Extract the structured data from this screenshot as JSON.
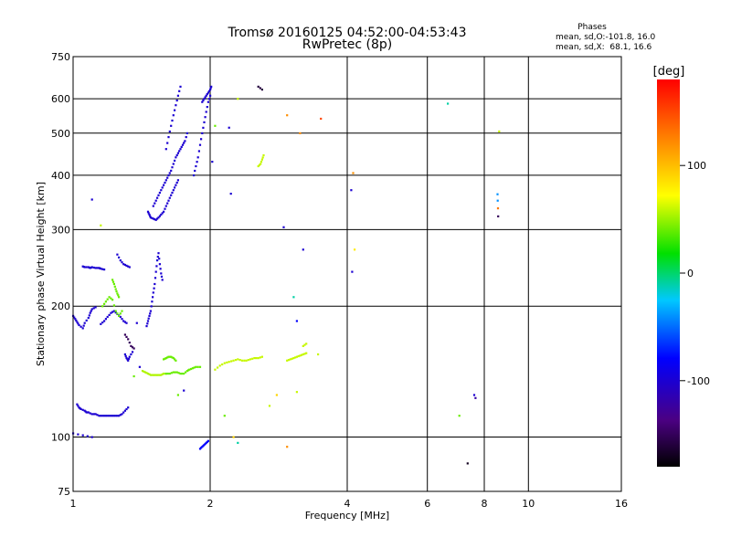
{
  "chart_data": {
    "type": "scatter",
    "title": "Tromsø 20160125 04:52:00-04:53:43",
    "subtitle": "RwPretec (8p)",
    "xlabel": "Frequency [MHz]",
    "ylabel": "Stationary phase Virtual Height [km]",
    "x_scale": "log",
    "y_scale": "log",
    "xlim": [
      1,
      16
    ],
    "ylim": [
      75,
      750
    ],
    "x_ticks": [
      1,
      2,
      4,
      6,
      8,
      10,
      16
    ],
    "y_ticks": [
      75,
      100,
      200,
      300,
      400,
      500,
      600,
      750
    ],
    "grid": true,
    "phases_box": {
      "heading": "Phases",
      "line1": "mean, sd,O:-101.8, 16.0",
      "line2": "mean, sd,X:  68.1, 16.6"
    },
    "colorbar": {
      "label": "[deg]",
      "min": -180,
      "max": 180,
      "ticks": [
        100,
        0,
        -100
      ]
    },
    "traces": [
      {
        "x": [
          1.0,
          1.01,
          1.02,
          1.03,
          1.05,
          1.06,
          1.08,
          1.09,
          1.1,
          1.12
        ],
        "y": [
          190,
          187,
          184,
          181,
          178,
          183,
          188,
          193,
          197,
          199
        ],
        "phase": -100
      },
      {
        "x": [
          1.05,
          1.06,
          1.08,
          1.09,
          1.1,
          1.12,
          1.14,
          1.15,
          1.17
        ],
        "y": [
          247,
          246,
          246,
          245,
          246,
          245,
          245,
          244,
          243
        ],
        "phase": -100
      },
      {
        "x": [
          1.02,
          1.03,
          1.04,
          1.06,
          1.07,
          1.08,
          1.1,
          1.12,
          1.14,
          1.16,
          1.18,
          1.2,
          1.22,
          1.24,
          1.26,
          1.28,
          1.3,
          1.32
        ],
        "y": [
          119,
          117,
          116,
          115,
          114,
          114,
          113,
          113,
          112,
          112,
          112,
          112,
          112,
          112,
          112,
          113,
          115,
          117
        ],
        "phase": -100
      },
      {
        "x": [
          1.15,
          1.17,
          1.19,
          1.21,
          1.23,
          1.25,
          1.27,
          1.29,
          1.31
        ],
        "y": [
          182,
          185,
          189,
          193,
          195,
          192,
          189,
          185,
          183
        ],
        "phase": -100
      },
      {
        "x": [
          1.16,
          1.18,
          1.2,
          1.22,
          1.24,
          1.26,
          1.28
        ],
        "y": [
          200,
          205,
          210,
          207,
          195,
          190,
          195
        ],
        "phase": 40
      },
      {
        "x": [
          1.22,
          1.23,
          1.24,
          1.25,
          1.26
        ],
        "y": [
          230,
          225,
          219,
          214,
          210
        ],
        "phase": 40
      },
      {
        "x": [
          1.25,
          1.27,
          1.29,
          1.31,
          1.33
        ],
        "y": [
          263,
          255,
          250,
          248,
          246
        ],
        "phase": -100
      },
      {
        "x": [
          1.3,
          1.31,
          1.32,
          1.33,
          1.35
        ],
        "y": [
          155,
          152,
          150,
          153,
          157
        ],
        "phase": -100
      },
      {
        "x": [
          1.3,
          1.32,
          1.34,
          1.36
        ],
        "y": [
          172,
          168,
          162,
          160
        ],
        "phase": -150
      },
      {
        "x": [
          1.42,
          1.44,
          1.46,
          1.48,
          1.5,
          1.52,
          1.54,
          1.56,
          1.58,
          1.6
        ],
        "y": [
          142,
          141,
          140,
          139,
          139,
          139,
          139,
          139,
          140,
          140
        ],
        "phase": 55
      },
      {
        "x": [
          1.6,
          1.63,
          1.66,
          1.69,
          1.72,
          1.75,
          1.78,
          1.8,
          1.83,
          1.86,
          1.9
        ],
        "y": [
          140,
          140,
          141,
          141,
          140,
          140,
          142,
          143,
          144,
          145,
          145
        ],
        "phase": 40
      },
      {
        "x": [
          1.58,
          1.6,
          1.62,
          1.64,
          1.66,
          1.68
        ],
        "y": [
          151,
          152,
          153,
          153,
          152,
          150
        ],
        "phase": 40
      },
      {
        "x": [
          1.45,
          1.46,
          1.47,
          1.48,
          1.49,
          1.5,
          1.51,
          1.52,
          1.53,
          1.54,
          1.55,
          1.56,
          1.57
        ],
        "y": [
          180,
          185,
          190,
          195,
          205,
          215,
          225,
          240,
          255,
          265,
          250,
          238,
          230
        ],
        "phase": -100
      },
      {
        "x": [
          1.46,
          1.47,
          1.48,
          1.5,
          1.52,
          1.54,
          1.56,
          1.58,
          1.6,
          1.62,
          1.64,
          1.66,
          1.68,
          1.7
        ],
        "y": [
          330,
          325,
          320,
          318,
          316,
          320,
          325,
          330,
          340,
          350,
          360,
          370,
          380,
          390
        ],
        "phase": -100
      },
      {
        "x": [
          1.5,
          1.52,
          1.54,
          1.56,
          1.58,
          1.6,
          1.62,
          1.64,
          1.66,
          1.68,
          1.7,
          1.72,
          1.74,
          1.76,
          1.78
        ],
        "y": [
          340,
          350,
          360,
          370,
          380,
          390,
          400,
          410,
          425,
          440,
          450,
          460,
          470,
          480,
          500
        ],
        "phase": -100
      },
      {
        "x": [
          1.6,
          1.62,
          1.64,
          1.66,
          1.68,
          1.7,
          1.72
        ],
        "y": [
          460,
          490,
          520,
          550,
          580,
          610,
          640
        ],
        "phase": -100
      },
      {
        "x": [
          1.84,
          1.86,
          1.88,
          1.9,
          1.92,
          1.94,
          1.96,
          1.98,
          2.0
        ],
        "y": [
          400,
          420,
          440,
          470,
          500,
          530,
          560,
          590,
          610
        ],
        "phase": -100
      },
      {
        "x": [
          1.92,
          1.94,
          1.96,
          1.98,
          2.0,
          2.01
        ],
        "y": [
          590,
          600,
          610,
          620,
          630,
          640
        ],
        "phase": -100
      },
      {
        "x": [
          1.9,
          1.92,
          1.94,
          1.96,
          1.98
        ],
        "y": [
          94,
          95,
          96,
          97,
          98
        ],
        "phase": -80
      },
      {
        "x": [
          2.05,
          2.1,
          2.15,
          2.2,
          2.25,
          2.3,
          2.35,
          2.4,
          2.45,
          2.5,
          2.55,
          2.6
        ],
        "y": [
          143,
          146,
          148,
          149,
          150,
          151,
          150,
          150,
          151,
          152,
          152,
          153
        ],
        "phase": 60
      },
      {
        "x": [
          2.55,
          2.58,
          2.6,
          2.62
        ],
        "y": [
          420,
          425,
          435,
          445
        ],
        "phase": 60
      },
      {
        "x": [
          2.55,
          2.6
        ],
        "y": [
          640,
          630
        ],
        "phase": -160
      },
      {
        "x": [
          2.95,
          3.0,
          3.05,
          3.1,
          3.15,
          3.2,
          3.25
        ],
        "y": [
          150,
          151,
          152,
          153,
          154,
          155,
          156
        ],
        "phase": 60
      },
      {
        "x": [
          3.2,
          3.25
        ],
        "y": [
          162,
          164
        ],
        "phase": 60
      },
      {
        "x": [
          1.0,
          1.05,
          1.1
        ],
        "y": [
          102,
          101,
          100
        ],
        "phase": -100
      }
    ],
    "points": [
      {
        "x": 1.1,
        "y": 352,
        "phase": -100
      },
      {
        "x": 1.15,
        "y": 307,
        "phase": 60
      },
      {
        "x": 1.38,
        "y": 183,
        "phase": -100
      },
      {
        "x": 1.4,
        "y": 145,
        "phase": -100
      },
      {
        "x": 1.36,
        "y": 138,
        "phase": 40
      },
      {
        "x": 1.7,
        "y": 125,
        "phase": 40
      },
      {
        "x": 1.75,
        "y": 128,
        "phase": -100
      },
      {
        "x": 2.02,
        "y": 430,
        "phase": -100
      },
      {
        "x": 2.05,
        "y": 520,
        "phase": 40
      },
      {
        "x": 2.2,
        "y": 515,
        "phase": -100
      },
      {
        "x": 2.22,
        "y": 363,
        "phase": -100
      },
      {
        "x": 2.3,
        "y": 600,
        "phase": 60
      },
      {
        "x": 2.25,
        "y": 100,
        "phase": 90
      },
      {
        "x": 2.3,
        "y": 97,
        "phase": -10
      },
      {
        "x": 2.15,
        "y": 112,
        "phase": 40
      },
      {
        "x": 2.7,
        "y": 118,
        "phase": 60
      },
      {
        "x": 2.8,
        "y": 125,
        "phase": 90
      },
      {
        "x": 2.9,
        "y": 304,
        "phase": -100
      },
      {
        "x": 2.95,
        "y": 550,
        "phase": 120
      },
      {
        "x": 3.05,
        "y": 210,
        "phase": -10
      },
      {
        "x": 3.1,
        "y": 185,
        "phase": -80
      },
      {
        "x": 3.15,
        "y": 500,
        "phase": 120
      },
      {
        "x": 3.2,
        "y": 270,
        "phase": -100
      },
      {
        "x": 3.1,
        "y": 127,
        "phase": 60
      },
      {
        "x": 3.5,
        "y": 540,
        "phase": 150
      },
      {
        "x": 3.45,
        "y": 155,
        "phase": 60
      },
      {
        "x": 2.95,
        "y": 95,
        "phase": 120
      },
      {
        "x": 4.08,
        "y": 370,
        "phase": -100
      },
      {
        "x": 4.1,
        "y": 240,
        "phase": -100
      },
      {
        "x": 4.12,
        "y": 405,
        "phase": 120
      },
      {
        "x": 4.15,
        "y": 270,
        "phase": 80
      },
      {
        "x": 6.65,
        "y": 585,
        "phase": -10
      },
      {
        "x": 7.05,
        "y": 112,
        "phase": 40
      },
      {
        "x": 7.6,
        "y": 125,
        "phase": -100
      },
      {
        "x": 7.65,
        "y": 123,
        "phase": -120
      },
      {
        "x": 7.35,
        "y": 87,
        "phase": -170
      },
      {
        "x": 8.55,
        "y": 362,
        "phase": -40
      },
      {
        "x": 8.56,
        "y": 350,
        "phase": -40
      },
      {
        "x": 8.57,
        "y": 336,
        "phase": 130
      },
      {
        "x": 8.58,
        "y": 322,
        "phase": -150
      },
      {
        "x": 8.62,
        "y": 505,
        "phase": 60
      }
    ]
  }
}
